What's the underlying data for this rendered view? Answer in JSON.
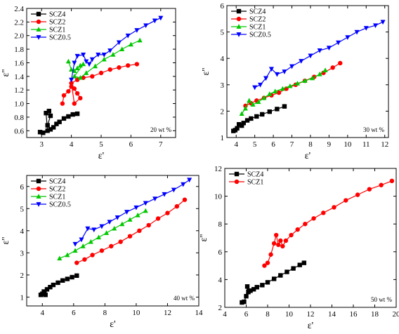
{
  "chart_data": [
    {
      "type": "scatter",
      "xlabel": "ε'",
      "ylabel": "ε''",
      "annotation": "20 wt %",
      "xlim": [
        2.5,
        7.5
      ],
      "ylim": [
        0.5,
        2.4
      ],
      "xticks": [
        "3",
        "4",
        "5",
        "6",
        "7"
      ],
      "yticks": [
        "0.6",
        "0.8",
        "1.0",
        "1.2",
        "1.4",
        "1.6",
        "1.8",
        "2.0",
        "2.2",
        "2.4"
      ],
      "legend_position": "top-left",
      "series": [
        {
          "name": "SCZ4",
          "color": "#000000",
          "marker": "square",
          "x": [
            2.95,
            3.05,
            3.2,
            3.15,
            3.25,
            3.3,
            3.2,
            3.3,
            3.4,
            3.5,
            3.6,
            3.75,
            3.9,
            4.05,
            4.2
          ],
          "y": [
            0.58,
            0.57,
            0.6,
            0.86,
            0.89,
            0.82,
            0.68,
            0.62,
            0.65,
            0.7,
            0.73,
            0.78,
            0.81,
            0.84,
            0.85
          ]
        },
        {
          "name": "SCZ2",
          "color": "#ff0000",
          "marker": "circle",
          "x": [
            3.7,
            3.75,
            3.9,
            4.0,
            4.1,
            4.2,
            4.3,
            4.1,
            4.0,
            4.2,
            4.4,
            4.7,
            5.0,
            5.3,
            5.6,
            5.9,
            6.2
          ],
          "y": [
            1.0,
            1.12,
            1.18,
            1.25,
            1.22,
            1.15,
            1.08,
            1.0,
            1.3,
            1.35,
            1.38,
            1.4,
            1.45,
            1.5,
            1.53,
            1.56,
            1.58
          ]
        },
        {
          "name": "SCZ1",
          "color": "#00c800",
          "marker": "triangle-up",
          "x": [
            3.9,
            4.0,
            4.1,
            4.2,
            4.3,
            4.4,
            4.1,
            4.3,
            4.5,
            4.8,
            5.1,
            5.4,
            5.7,
            6.0,
            6.3
          ],
          "y": [
            1.62,
            1.5,
            1.48,
            1.52,
            1.56,
            1.58,
            1.4,
            1.38,
            1.45,
            1.55,
            1.65,
            1.72,
            1.8,
            1.87,
            1.93
          ]
        },
        {
          "name": "SCZ0.5",
          "color": "#0000ff",
          "marker": "triangle-down",
          "x": [
            4.0,
            4.1,
            4.2,
            4.4,
            4.5,
            4.6,
            4.7,
            4.9,
            5.1,
            5.3,
            5.6,
            5.9,
            6.2,
            6.5,
            6.8,
            7.0
          ],
          "y": [
            1.35,
            1.6,
            1.7,
            1.72,
            1.62,
            1.58,
            1.65,
            1.72,
            1.72,
            1.78,
            1.9,
            2.0,
            2.08,
            2.15,
            2.22,
            2.26
          ]
        }
      ]
    },
    {
      "type": "scatter",
      "xlabel": "ε'",
      "ylabel": "ε''",
      "annotation": "30 wt %",
      "xlim": [
        3.5,
        12.2
      ],
      "ylim": [
        1,
        6
      ],
      "xticks": [
        "4",
        "5",
        "6",
        "7",
        "8",
        "9",
        "10",
        "11",
        "12"
      ],
      "yticks": [
        "1",
        "2",
        "3",
        "4",
        "5",
        "6"
      ],
      "legend_position": "top-left",
      "series": [
        {
          "name": "SCZ4",
          "color": "#000000",
          "marker": "square",
          "x": [
            3.85,
            3.95,
            4.05,
            4.15,
            4.3,
            4.4,
            4.6,
            4.8,
            5.1,
            5.4,
            5.8,
            6.2,
            6.6
          ],
          "y": [
            1.25,
            1.28,
            1.35,
            1.5,
            1.45,
            1.55,
            1.65,
            1.72,
            1.8,
            1.88,
            1.98,
            2.08,
            2.18
          ]
        },
        {
          "name": "SCZ2",
          "color": "#ff0000",
          "marker": "circle",
          "x": [
            4.5,
            4.8,
            5.1,
            5.5,
            5.9,
            6.3,
            6.7,
            7.2,
            7.7,
            8.2,
            8.7,
            9.2,
            9.6
          ],
          "y": [
            2.2,
            2.3,
            2.4,
            2.5,
            2.6,
            2.7,
            2.85,
            3.0,
            3.15,
            3.3,
            3.45,
            3.65,
            3.82
          ]
        },
        {
          "name": "SCZ1",
          "color": "#00c800",
          "marker": "triangle-up",
          "x": [
            4.3,
            4.5,
            4.7,
            4.9,
            5.2,
            5.5,
            5.8,
            6.1,
            6.5,
            6.9,
            7.3,
            7.7,
            8.1,
            8.5,
            8.8
          ],
          "y": [
            1.9,
            2.1,
            2.4,
            2.25,
            2.35,
            2.5,
            2.65,
            2.75,
            2.85,
            2.95,
            3.05,
            3.15,
            3.25,
            3.4,
            3.55
          ]
        },
        {
          "name": "SCZ0.5",
          "color": "#0000ff",
          "marker": "triangle-down",
          "x": [
            5.0,
            5.3,
            5.6,
            5.9,
            6.2,
            6.6,
            7.0,
            7.5,
            8.0,
            8.5,
            9.0,
            9.5,
            10.0,
            10.5,
            11.0,
            11.5,
            11.9
          ],
          "y": [
            2.9,
            3.0,
            3.25,
            3.6,
            3.4,
            3.5,
            3.7,
            3.9,
            4.1,
            4.3,
            4.4,
            4.6,
            4.8,
            5.0,
            5.15,
            5.25,
            5.38
          ]
        }
      ]
    },
    {
      "type": "scatter",
      "xlabel": "ε'",
      "ylabel": "ε''",
      "annotation": "40 wt %",
      "xlim": [
        3,
        14
      ],
      "ylim": [
        0.6,
        6.5
      ],
      "xticks": [
        "4",
        "6",
        "8",
        "10",
        "12",
        "14"
      ],
      "yticks": [
        "1",
        "2",
        "3",
        "4",
        "5",
        "6"
      ],
      "legend_position": "top-left",
      "series": [
        {
          "name": "SCZ4",
          "color": "#000000",
          "marker": "square",
          "x": [
            3.9,
            4.0,
            4.1,
            4.2,
            4.3,
            4.5,
            4.7,
            5.0,
            5.3,
            5.6,
            5.9,
            6.2
          ],
          "y": [
            1.1,
            1.15,
            1.25,
            1.1,
            1.35,
            1.45,
            1.55,
            1.65,
            1.75,
            1.82,
            1.9,
            1.97
          ]
        },
        {
          "name": "SCZ2",
          "color": "#ff0000",
          "marker": "circle",
          "x": [
            6.2,
            6.7,
            7.2,
            7.8,
            8.4,
            9.0,
            9.6,
            10.2,
            10.8,
            11.4,
            12.0,
            12.6,
            13.1
          ],
          "y": [
            2.55,
            2.7,
            2.9,
            3.1,
            3.3,
            3.5,
            3.75,
            4.0,
            4.25,
            4.55,
            4.8,
            5.1,
            5.4
          ]
        },
        {
          "name": "SCZ1",
          "color": "#00c800",
          "marker": "triangle-up",
          "x": [
            5.1,
            5.6,
            6.1,
            6.6,
            7.1,
            7.6,
            8.1,
            8.6,
            9.1,
            9.6,
            10.1,
            10.6
          ],
          "y": [
            2.75,
            2.9,
            3.1,
            3.3,
            3.5,
            3.7,
            3.9,
            4.1,
            4.3,
            4.5,
            4.7,
            4.9
          ]
        },
        {
          "name": "SCZ0.5",
          "color": "#0000ff",
          "marker": "triangle-down",
          "x": [
            6.1,
            6.5,
            6.9,
            7.3,
            7.8,
            8.3,
            8.8,
            9.4,
            10.0,
            10.6,
            11.2,
            11.8,
            12.4,
            13.0,
            13.4
          ],
          "y": [
            3.4,
            3.6,
            4.1,
            4.05,
            4.2,
            4.4,
            4.6,
            4.85,
            5.05,
            5.25,
            5.45,
            5.65,
            5.85,
            6.1,
            6.3
          ]
        }
      ]
    },
    {
      "type": "scatter",
      "xlabel": "ε'",
      "ylabel": "ε''",
      "annotation": "50 wt %",
      "xlim": [
        4,
        20
      ],
      "ylim": [
        2,
        12
      ],
      "xticks": [
        "4",
        "6",
        "8",
        "10",
        "12",
        "14",
        "16",
        "18",
        "20"
      ],
      "yticks": [
        "2",
        "4",
        "6",
        "8",
        "10",
        "12"
      ],
      "legend_position": "top-left",
      "series": [
        {
          "name": "SCZ4",
          "color": "#000000",
          "marker": "square",
          "x": [
            5.6,
            5.8,
            6.0,
            6.1,
            6.2,
            6.4,
            6.7,
            7.0,
            7.5,
            8.0,
            8.6,
            9.2,
            9.8,
            10.4,
            11.0,
            11.4
          ],
          "y": [
            2.35,
            2.4,
            2.8,
            3.5,
            3.1,
            3.2,
            3.3,
            3.45,
            3.6,
            3.8,
            4.05,
            4.3,
            4.55,
            4.8,
            5.05,
            5.2
          ]
        },
        {
          "name": "SCZ1",
          "color": "#ff0000",
          "marker": "circle",
          "x": [
            7.7,
            8.0,
            8.3,
            8.6,
            8.8,
            9.0,
            9.2,
            9.4,
            9.7,
            10.2,
            10.8,
            11.5,
            12.3,
            13.2,
            14.2,
            15.3,
            16.4,
            17.5,
            18.6,
            19.6
          ],
          "y": [
            5.0,
            5.2,
            5.8,
            6.6,
            7.2,
            6.5,
            6.8,
            6.4,
            6.8,
            7.2,
            7.6,
            8.0,
            8.4,
            8.8,
            9.2,
            9.7,
            10.1,
            10.5,
            10.8,
            11.1
          ]
        }
      ]
    }
  ]
}
